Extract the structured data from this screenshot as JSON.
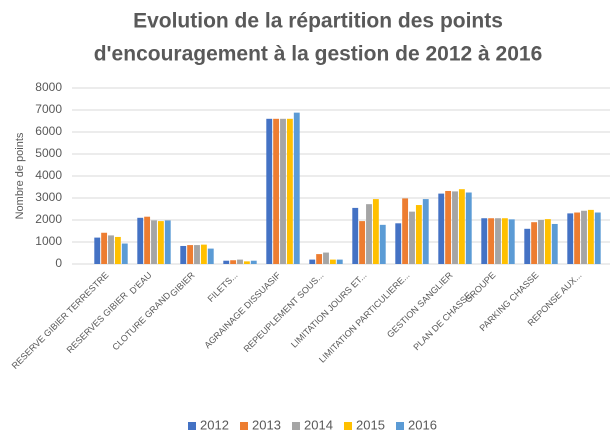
{
  "chart_data": {
    "type": "bar",
    "title": [
      "Evolution de la répartition des points",
      "d'encouragement à la gestion de 2012 à 2016"
    ],
    "y_label": "Nombre de points",
    "categories": [
      [
        "RESERVE GIBIER TERRESTRE"
      ],
      [
        "RESERVES GIBIER",
        "D'EAU"
      ],
      [
        "CLOTURE GRAND",
        "GIBIER"
      ],
      [
        "FILETS..."
      ],
      [
        "AGRAINAGE DISSUASIF"
      ],
      [
        "REPEUPLEMENT SOUS..."
      ],
      [
        "LIMITATION JOURS ET..."
      ],
      [
        "LIMITATION PARTICULIERE..."
      ],
      [
        "GESTION SANGLIER"
      ],
      [
        "PLAN DE CHASSE",
        "GROUPE"
      ],
      [
        "PARKING CHASSE"
      ],
      [
        "REPONSE AUX..."
      ]
    ],
    "series": [
      {
        "name": "2012",
        "color": "#4472c4",
        "values": [
          1200,
          2100,
          820,
          150,
          6600,
          200,
          2550,
          1850,
          3200,
          2080,
          1600,
          2300
        ]
      },
      {
        "name": "2013",
        "color": "#ed7d31",
        "values": [
          1420,
          2150,
          860,
          170,
          6600,
          450,
          1950,
          2980,
          3320,
          2080,
          1900,
          2340
        ]
      },
      {
        "name": "2014",
        "color": "#a5a5a5",
        "values": [
          1300,
          1980,
          860,
          200,
          6600,
          520,
          2720,
          2380,
          3300,
          2080,
          2000,
          2420
        ]
      },
      {
        "name": "2015",
        "color": "#ffc000",
        "values": [
          1230,
          1950,
          880,
          120,
          6600,
          200,
          2950,
          2680,
          3400,
          2080,
          2040,
          2460
        ]
      },
      {
        "name": "2016",
        "color": "#5b9bd5",
        "values": [
          930,
          1980,
          700,
          150,
          6880,
          200,
          1780,
          2950,
          3250,
          2030,
          1820,
          2340
        ]
      }
    ],
    "ylim": [
      0,
      8000
    ],
    "yticks": [
      0,
      1000,
      2000,
      3000,
      4000,
      5000,
      6000,
      7000,
      8000
    ],
    "grid": true,
    "legend": "bottom"
  }
}
